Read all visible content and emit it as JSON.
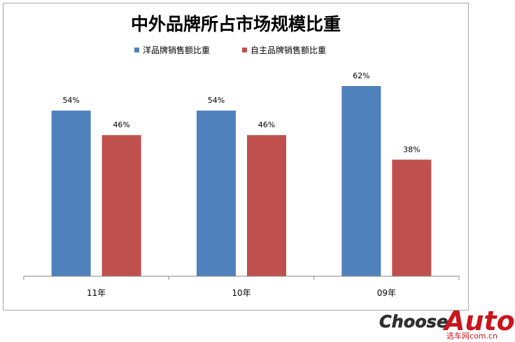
{
  "chart_data": {
    "type": "bar",
    "title": "中外品牌所占市场规模比重",
    "categories": [
      "11年",
      "10年",
      "09年"
    ],
    "series": [
      {
        "name": "洋品牌销售额比重",
        "color": "#4f81bd",
        "values": [
          54,
          54,
          62
        ],
        "labels": [
          "54%",
          "54%",
          "62%"
        ]
      },
      {
        "name": "自主品牌销售额比重",
        "color": "#c0504d",
        "values": [
          46,
          46,
          38
        ],
        "labels": [
          "46%",
          "46%",
          "38%"
        ]
      }
    ],
    "ylim": [
      0,
      70
    ],
    "grid": false,
    "legend_position": "top-center"
  },
  "watermark": {
    "brand_left": "Choose",
    "brand_right": "Auto",
    "sub_text": "选车网com.cn"
  }
}
